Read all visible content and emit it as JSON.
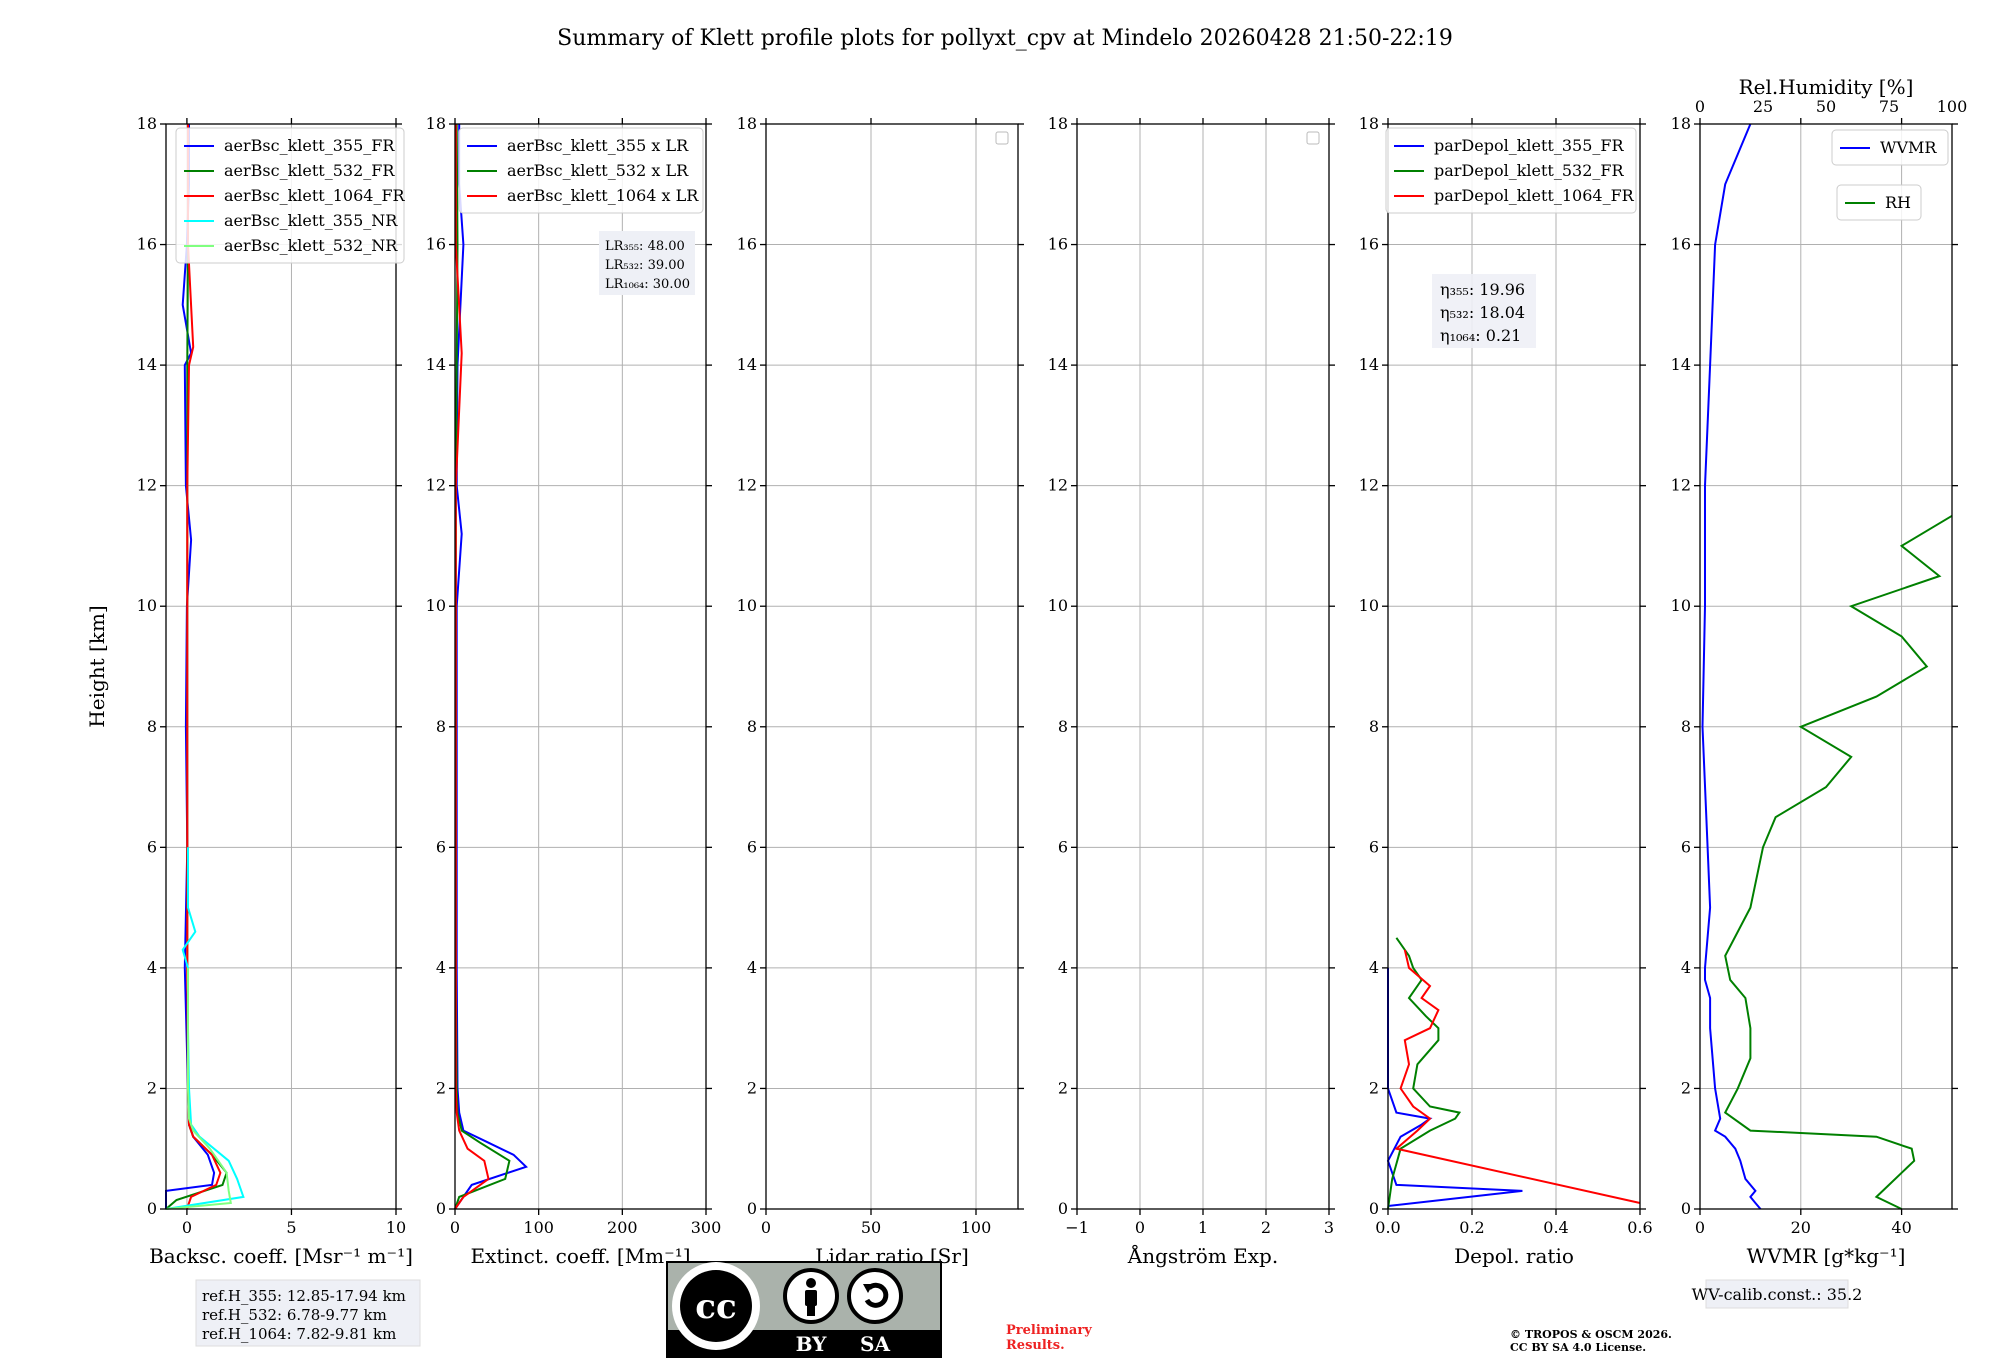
{
  "title": "Summary of Klett profile plots for pollyxt_cpv at Mindelo 20260428 21:50-22:19",
  "colors": {
    "blue": "#0000ff",
    "green": "#008000",
    "red": "#ff0000",
    "cyan": "#00ffff",
    "lightgreen": "#7fff7f",
    "grid": "#b0b0b0"
  },
  "chart_data": [
    {
      "id": "backscatter",
      "type": "line",
      "ylabel": "Height [km]",
      "xlabel": "Backsc. coeff. [Msr⁻¹ m⁻¹]",
      "xlim": [
        -1,
        10
      ],
      "ylim": [
        0,
        18
      ],
      "xticks": [
        "0",
        "5",
        "10"
      ],
      "xtick_values": [
        0,
        5,
        10
      ],
      "yticks": [
        "0",
        "2",
        "4",
        "6",
        "8",
        "10",
        "12",
        "14",
        "16",
        "18"
      ],
      "legend": [
        "aerBsc_klett_355_FR",
        "aerBsc_klett_532_FR",
        "aerBsc_klett_1064_FR",
        "aerBsc_klett_355_NR",
        "aerBsc_klett_532_NR"
      ],
      "series": [
        {
          "name": "aerBsc_klett_355_FR",
          "color": "#0000ff",
          "h": [
            0,
            0.3,
            0.4,
            0.6,
            0.9,
            1.2,
            1.4,
            2,
            4,
            6,
            8,
            10,
            11.1,
            12,
            14,
            14.2,
            15,
            16,
            17,
            18
          ],
          "v": [
            -1,
            -1,
            1.2,
            1.3,
            1.0,
            0.3,
            0.1,
            0.05,
            -0.1,
            0.02,
            -0.05,
            0.0,
            0.2,
            -0.05,
            -0.1,
            0.2,
            -0.2,
            0.0,
            0.1,
            0.1
          ]
        },
        {
          "name": "aerBsc_klett_532_FR",
          "color": "#008000",
          "h": [
            0,
            0.15,
            0.4,
            0.6,
            0.9,
            1.2,
            1.4,
            2,
            4,
            6,
            8,
            10,
            12,
            14,
            16,
            18
          ],
          "v": [
            -1,
            -0.5,
            1.7,
            1.9,
            1.2,
            0.3,
            0.1,
            0.05,
            0.02,
            0.02,
            0.02,
            0.02,
            0.02,
            0.02,
            0.05,
            0.05
          ]
        },
        {
          "name": "aerBsc_klett_1064_FR",
          "color": "#ff0000",
          "h": [
            0,
            0.2,
            0.4,
            0.6,
            0.9,
            1.2,
            1.4,
            2,
            4,
            6,
            8,
            10,
            12,
            14,
            14.3,
            16,
            18
          ],
          "v": [
            0,
            0.2,
            1.4,
            1.6,
            1.2,
            0.3,
            0.1,
            0.05,
            0.02,
            0.02,
            0.02,
            0.02,
            0.02,
            0.1,
            0.3,
            0.05,
            0.05
          ]
        },
        {
          "name": "aerBsc_klett_355_NR",
          "color": "#00ffff",
          "h": [
            0,
            0.2,
            0.5,
            0.8,
            1.2,
            1.4,
            2,
            3,
            4,
            4.3,
            4.6,
            5,
            6
          ],
          "v": [
            -1,
            2.7,
            2.4,
            2.0,
            0.6,
            0.2,
            0.1,
            0.05,
            0.05,
            -0.2,
            0.4,
            0.05,
            0.05
          ]
        },
        {
          "name": "aerBsc_klett_532_NR",
          "color": "#7fff7f",
          "h": [
            0,
            0.1,
            0.3,
            0.6,
            1.0,
            1.3,
            1.5,
            2,
            3,
            4
          ],
          "v": [
            -1,
            2.1,
            2.0,
            1.9,
            1.1,
            0.3,
            0.1,
            0.05,
            0.05,
            0.05
          ]
        }
      ]
    },
    {
      "id": "extinction",
      "type": "line",
      "xlabel": "Extinct. coeff. [Mm⁻¹]",
      "xlim": [
        0,
        300
      ],
      "ylim": [
        0,
        18
      ],
      "xticks": [
        "0",
        "100",
        "200",
        "300"
      ],
      "xtick_values": [
        0,
        100,
        200,
        300
      ],
      "yticks": [
        "0",
        "2",
        "4",
        "6",
        "8",
        "10",
        "12",
        "14",
        "16",
        "18"
      ],
      "legend": [
        "aerBsc_klett_355 x LR",
        "aerBsc_klett_532 x LR",
        "aerBsc_klett_1064 x LR"
      ],
      "lr_text": [
        "LR₃₅₅: 48.00",
        "LR₅₃₂: 39.00",
        "LR₁₀₆₄: 30.00"
      ],
      "series": [
        {
          "name": "aerBsc_klett_355 x LR",
          "color": "#0000ff",
          "h": [
            0,
            0.4,
            0.7,
            0.9,
            1.1,
            1.3,
            1.6,
            2,
            4,
            6,
            8,
            10,
            11.2,
            12,
            14,
            16,
            17,
            18
          ],
          "v": [
            0,
            20,
            85,
            70,
            40,
            10,
            5,
            3,
            2,
            2,
            2,
            2,
            8,
            2,
            3,
            10,
            5,
            5
          ]
        },
        {
          "name": "aerBsc_klett_532 x LR",
          "color": "#008000",
          "h": [
            0,
            0.2,
            0.5,
            0.8,
            1.1,
            1.3,
            1.6,
            2,
            4,
            8,
            12,
            14,
            16,
            18
          ],
          "v": [
            0,
            5,
            60,
            65,
            30,
            8,
            3,
            2,
            1,
            1,
            1,
            2,
            3,
            2
          ]
        },
        {
          "name": "aerBsc_klett_1064 x LR",
          "color": "#ff0000",
          "h": [
            0,
            0.2,
            0.5,
            0.8,
            1.0,
            1.3,
            1.6,
            2,
            4,
            8,
            12,
            14.2,
            16,
            18
          ],
          "v": [
            0,
            10,
            40,
            35,
            15,
            5,
            2,
            1,
            1,
            1,
            1,
            8,
            1,
            1
          ]
        }
      ]
    },
    {
      "id": "lidar_ratio",
      "type": "line",
      "xlabel": "Lidar ratio [Sr]",
      "xlim": [
        0,
        120
      ],
      "ylim": [
        0,
        18
      ],
      "xticks": [
        "0",
        "50",
        "100"
      ],
      "xtick_values": [
        0,
        50,
        100
      ],
      "yticks": [
        "0",
        "2",
        "4",
        "6",
        "8",
        "10",
        "12",
        "14",
        "16",
        "18"
      ],
      "series": []
    },
    {
      "id": "angstrom",
      "type": "line",
      "xlabel": "Ångström Exp.",
      "xlim": [
        -1,
        3
      ],
      "ylim": [
        0,
        18
      ],
      "xticks": [
        "−1",
        "0",
        "1",
        "2",
        "3"
      ],
      "xtick_values": [
        -1,
        0,
        1,
        2,
        3
      ],
      "yticks": [
        "0",
        "2",
        "4",
        "6",
        "8",
        "10",
        "12",
        "14",
        "16",
        "18"
      ],
      "series": []
    },
    {
      "id": "depol",
      "type": "line",
      "xlabel": "Depol. ratio",
      "xlim": [
        0,
        0.6
      ],
      "ylim": [
        0,
        18
      ],
      "xticks": [
        "0.0",
        "0.2",
        "0.4",
        "0.6"
      ],
      "xtick_values": [
        0,
        0.2,
        0.4,
        0.6
      ],
      "yticks": [
        "0",
        "2",
        "4",
        "6",
        "8",
        "10",
        "12",
        "14",
        "16",
        "18"
      ],
      "legend": [
        "parDepol_klett_355_FR",
        "parDepol_klett_532_FR",
        "parDepol_klett_1064_FR"
      ],
      "eta_text": [
        "η₃₅₅: 19.96",
        "η₅₃₂: 18.04",
        "η₁₀₆₄: 0.21"
      ],
      "series": [
        {
          "name": "parDepol_klett_355_FR",
          "color": "#0000ff",
          "h": [
            0.05,
            0.3,
            0.4,
            0.8,
            1.2,
            1.4,
            1.5,
            1.6,
            2,
            3,
            4
          ],
          "v": [
            0.0,
            0.32,
            0.02,
            0.0,
            0.03,
            0.08,
            0.1,
            0.02,
            0.0,
            0.0,
            0.0
          ]
        },
        {
          "name": "parDepol_klett_532_FR",
          "color": "#008000",
          "h": [
            0,
            0.5,
            1.0,
            1.3,
            1.5,
            1.6,
            1.7,
            2.0,
            2.4,
            2.8,
            3.0,
            3.2,
            3.5,
            3.8,
            4.0,
            4.2,
            4.5
          ],
          "v": [
            0.0,
            0.01,
            0.03,
            0.1,
            0.16,
            0.17,
            0.1,
            0.06,
            0.07,
            0.12,
            0.12,
            0.09,
            0.05,
            0.08,
            0.06,
            0.05,
            0.02
          ]
        },
        {
          "name": "parDepol_klett_1064_FR",
          "color": "#ff0000",
          "h": [
            0.1,
            1.0,
            1.3,
            1.5,
            1.7,
            2.0,
            2.4,
            2.8,
            3.0,
            3.3,
            3.5,
            3.7,
            4.0,
            4.3
          ],
          "v": [
            0.6,
            0.02,
            0.07,
            0.1,
            0.06,
            0.03,
            0.05,
            0.04,
            0.1,
            0.12,
            0.08,
            0.1,
            0.05,
            0.04
          ]
        }
      ]
    },
    {
      "id": "wvmr",
      "type": "line",
      "xlabel": "WVMR [g*kg⁻¹]",
      "xlim": [
        0,
        50
      ],
      "ylim": [
        0,
        18
      ],
      "xticks": [
        "0",
        "20",
        "40"
      ],
      "xtick_values": [
        0,
        20,
        40
      ],
      "yticks": [
        "0",
        "2",
        "4",
        "6",
        "8",
        "10",
        "12",
        "14",
        "16",
        "18"
      ],
      "top_xlabel": "Rel.Humidity [%]",
      "top_xlim": [
        0,
        100
      ],
      "top_xticks": [
        "0",
        "25",
        "50",
        "75",
        "100"
      ],
      "top_xtick_values": [
        0,
        25,
        50,
        75,
        100
      ],
      "legend": [
        "WVMR",
        "RH"
      ],
      "series": [
        {
          "name": "WVMR",
          "color": "#0000ff",
          "axis": "bottom",
          "h": [
            0,
            0.1,
            0.2,
            0.3,
            0.5,
            0.8,
            1.0,
            1.2,
            1.3,
            1.5,
            2,
            3,
            3.5,
            3.8,
            4,
            5,
            6,
            8,
            10,
            12,
            14,
            16,
            17,
            18
          ],
          "v": [
            12,
            11,
            10,
            11,
            9,
            8,
            7,
            5,
            3,
            4,
            3,
            2,
            2,
            1,
            1,
            2,
            1.5,
            0.5,
            1,
            1,
            2,
            3,
            5,
            10
          ]
        },
        {
          "name": "RH",
          "color": "#008000",
          "axis": "top",
          "h": [
            0,
            0.2,
            0.4,
            0.6,
            0.8,
            1.0,
            1.2,
            1.3,
            1.6,
            2,
            2.5,
            3,
            3.5,
            3.8,
            4.2,
            5,
            6,
            6.5,
            7,
            7.5,
            8,
            8.5,
            9,
            9.5,
            10,
            10.5,
            11,
            11.5
          ],
          "v": [
            80,
            70,
            75,
            80,
            85,
            84,
            70,
            20,
            10,
            15,
            20,
            20,
            18,
            12,
            10,
            20,
            25,
            30,
            50,
            60,
            40,
            70,
            90,
            80,
            60,
            95,
            80,
            100
          ]
        }
      ]
    }
  ],
  "ref_text": [
    "ref.H_355: 12.85-17.94 km",
    "ref.H_532: 6.78-9.77 km",
    "ref.H_1064: 7.82-9.81 km"
  ],
  "license_badge": {
    "cc": "cc",
    "by": "BY",
    "sa": "SA"
  },
  "preliminary": [
    "Preliminary",
    "Results."
  ],
  "copyright": [
    "© TROPOS & OSCM 2026.",
    "CC BY SA 4.0 License."
  ],
  "wv_calib": "WV-calib.const.: 35.2"
}
